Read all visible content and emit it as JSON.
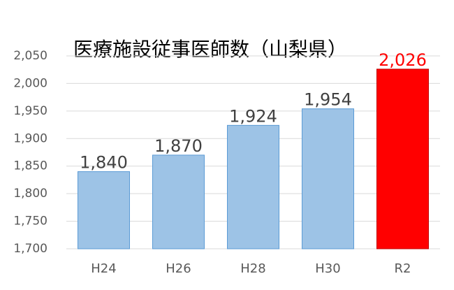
{
  "chart_data": {
    "type": "bar",
    "title": "医療施設従事医師数（山梨県）",
    "categories": [
      "H24",
      "H26",
      "H28",
      "H30",
      "R2"
    ],
    "values": [
      1840,
      1870,
      1924,
      1954,
      2026
    ],
    "value_labels": [
      "1,840",
      "1,870",
      "1,924",
      "1,954",
      "2,026"
    ],
    "colors": [
      "#9dc3e6",
      "#9dc3e6",
      "#9dc3e6",
      "#9dc3e6",
      "#ff0000"
    ],
    "value_label_colors": [
      "#404040",
      "#404040",
      "#404040",
      "#404040",
      "#ff0000"
    ],
    "ylim": [
      1700,
      2050
    ],
    "yticks": [
      {
        "value": 1700,
        "label": "1,700"
      },
      {
        "value": 1750,
        "label": "1,750"
      },
      {
        "value": 1800,
        "label": "1,800"
      },
      {
        "value": 1850,
        "label": "1,850"
      },
      {
        "value": 1900,
        "label": "1,900"
      },
      {
        "value": 1950,
        "label": "1,950"
      },
      {
        "value": 2000,
        "label": "2,000"
      },
      {
        "value": 2050,
        "label": "2,050"
      }
    ],
    "grid": true
  }
}
